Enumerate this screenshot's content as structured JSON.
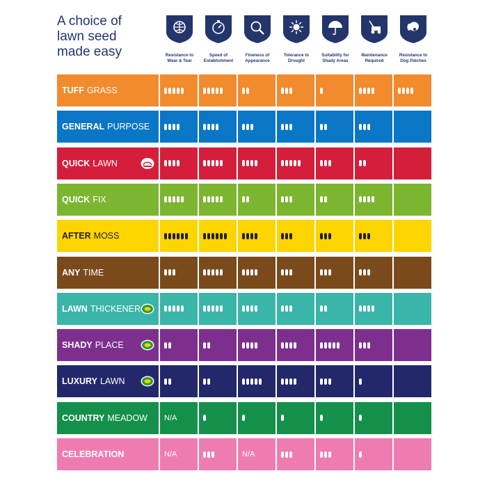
{
  "title_lines": [
    "A choice of",
    "lawn seed",
    "made easy"
  ],
  "columns": [
    {
      "label": "Resistance to\nWear & Tear",
      "icon": "football-icon"
    },
    {
      "label": "Speed of\nEstablishment",
      "icon": "stopwatch-icon"
    },
    {
      "label": "Fineness of\nAppearance",
      "icon": "magnifier-icon"
    },
    {
      "label": "Tolerance to\nDrought",
      "icon": "sun-icon"
    },
    {
      "label": "Suitability for\nShady Areas",
      "icon": "umbrella-icon"
    },
    {
      "label": "Maintenance\nRequired",
      "icon": "lawnmower-icon"
    },
    {
      "label": "Resistance to\nDog Patches",
      "icon": "dog-icon"
    }
  ],
  "chart_data": {
    "type": "table",
    "products": [
      {
        "bold": "TUFF",
        "rest": "GRASS",
        "color": "#f28a2e",
        "values": [
          5,
          5,
          2,
          3,
          1,
          4,
          4
        ],
        "text_dark": false
      },
      {
        "bold": "GENERAL",
        "rest": "PURPOSE",
        "color": "#0a76c6",
        "values": [
          4,
          4,
          3,
          3,
          2,
          3,
          null
        ],
        "text_dark": false
      },
      {
        "bold": "QUICK",
        "rest": "LAWN",
        "color": "#d41e3a",
        "values": [
          4,
          5,
          4,
          5,
          3,
          2,
          null
        ],
        "text_dark": false,
        "badge": "quick-lawn-logo-icon"
      },
      {
        "bold": "QUICK",
        "rest": "FIX",
        "color": "#7cb52f",
        "values": [
          5,
          5,
          2,
          3,
          2,
          4,
          null
        ],
        "text_dark": false
      },
      {
        "bold": "AFTER",
        "rest": "MOSS",
        "color": "#fcd400",
        "values": [
          6,
          6,
          4,
          3,
          3,
          3,
          null
        ],
        "text_dark": true
      },
      {
        "bold": "ANY",
        "rest": "TIME",
        "color": "#7a4a1c",
        "values": [
          3,
          5,
          4,
          3,
          3,
          3,
          null
        ],
        "text_dark": false
      },
      {
        "bold": "LAWN",
        "rest": "THICKENER",
        "color": "#3ab5aa",
        "values": [
          5,
          5,
          4,
          3,
          2,
          4,
          null
        ],
        "text_dark": false,
        "badge": "seed-badge-icon"
      },
      {
        "bold": "SHADY",
        "rest": "PLACE",
        "color": "#7d2f8e",
        "values": [
          2,
          2,
          4,
          4,
          5,
          3,
          null
        ],
        "text_dark": false,
        "badge": "seed-badge-icon"
      },
      {
        "bold": "LUXURY",
        "rest": "LAWN",
        "color": "#23286a",
        "values": [
          2,
          2,
          5,
          4,
          3,
          1,
          null
        ],
        "text_dark": false,
        "badge": "seed-badge-icon"
      },
      {
        "bold": "COUNTRY",
        "rest": "MEADOW",
        "color": "#14904b",
        "values": [
          "N/A",
          1,
          1,
          1,
          1,
          1,
          null
        ],
        "text_dark": false
      },
      {
        "bold": "CELEBRATION",
        "rest": "",
        "color": "#ef7cb0",
        "values": [
          "N/A",
          3,
          "N/A",
          3,
          3,
          1,
          null
        ],
        "text_dark": false
      }
    ]
  },
  "colors": {
    "heading": "#23356b",
    "shield": "#23356b"
  }
}
